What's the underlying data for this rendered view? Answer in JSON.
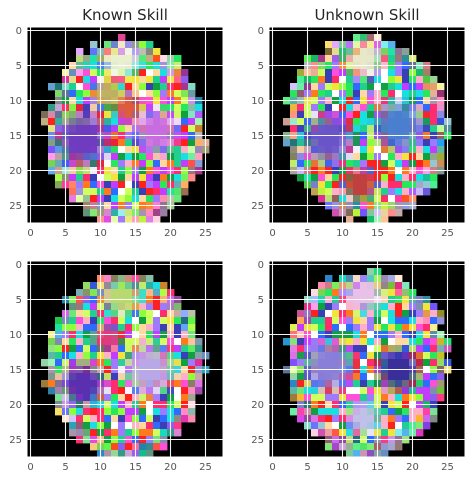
{
  "chart_data": [
    {
      "type": "heatmap",
      "title": "Known Skill",
      "xlabel": "",
      "ylabel": "",
      "xlim": [
        -0.5,
        27.5
      ],
      "ylim": [
        27.5,
        -0.5
      ],
      "xticks": [
        0,
        5,
        10,
        15,
        20,
        25
      ],
      "yticks": [
        0,
        5,
        10,
        15,
        20,
        25
      ],
      "grid": true,
      "background_color": "#000000",
      "blob": {
        "cx": 13.5,
        "cy": 14.5,
        "rx": 11.5,
        "ry": 13.2
      },
      "spots": [
        {
          "cx": 7.5,
          "cy": 15.5,
          "r": 5,
          "color": "#6f3bbf"
        },
        {
          "cx": 18,
          "cy": 14.5,
          "r": 4,
          "color": "#c86de0"
        },
        {
          "cx": 13,
          "cy": 4,
          "r": 3.5,
          "color": "#e8f0d0"
        },
        {
          "cx": 11,
          "cy": 9,
          "r": 2.5,
          "color": "#c0b060"
        },
        {
          "cx": 14,
          "cy": 11,
          "r": 2.5,
          "color": "#e05a3c"
        }
      ],
      "seed": 11
    },
    {
      "type": "heatmap",
      "title": "Unknown Skill",
      "xlabel": "",
      "ylabel": "",
      "xlim": [
        -0.5,
        27.5
      ],
      "ylim": [
        27.5,
        -0.5
      ],
      "xticks": [
        0,
        5,
        10,
        15,
        20,
        25
      ],
      "yticks": [
        0,
        5,
        10,
        15,
        20,
        25
      ],
      "grid": true,
      "background_color": "#000000",
      "blob": {
        "cx": 13.5,
        "cy": 14,
        "rx": 11.8,
        "ry": 13.3
      },
      "spots": [
        {
          "cx": 8,
          "cy": 15.5,
          "r": 4.5,
          "color": "#6a55c8"
        },
        {
          "cx": 18,
          "cy": 13.5,
          "r": 4.5,
          "color": "#4a7fd0"
        },
        {
          "cx": 13,
          "cy": 4,
          "r": 3.5,
          "color": "#e6e8c8"
        },
        {
          "cx": 12.5,
          "cy": 22,
          "r": 3,
          "color": "#c04040"
        }
      ],
      "seed": 23
    },
    {
      "type": "heatmap",
      "title": "",
      "xlabel": "",
      "ylabel": "",
      "xlim": [
        -0.5,
        27.5
      ],
      "ylim": [
        27.5,
        -0.5
      ],
      "xticks": [
        0,
        5,
        10,
        15,
        20,
        25
      ],
      "yticks": [
        0,
        5,
        10,
        15,
        20,
        25
      ],
      "grid": true,
      "background_color": "#000000",
      "blob": {
        "cx": 13.5,
        "cy": 14.5,
        "rx": 11.5,
        "ry": 13.2
      },
      "spots": [
        {
          "cx": 7.5,
          "cy": 17,
          "r": 4,
          "color": "#5a2fb0"
        },
        {
          "cx": 17,
          "cy": 15,
          "r": 4.5,
          "color": "#b9a8e8"
        },
        {
          "cx": 13,
          "cy": 4.5,
          "r": 3.5,
          "color": "#b8d870"
        },
        {
          "cx": 11,
          "cy": 10.5,
          "r": 2.5,
          "color": "#e03a7a"
        }
      ],
      "seed": 37
    },
    {
      "type": "heatmap",
      "title": "",
      "xlabel": "",
      "ylabel": "",
      "xlim": [
        -0.5,
        27.5
      ],
      "ylim": [
        27.5,
        -0.5
      ],
      "xticks": [
        0,
        5,
        10,
        15,
        20,
        25
      ],
      "yticks": [
        0,
        5,
        10,
        15,
        20,
        25
      ],
      "grid": true,
      "background_color": "#000000",
      "blob": {
        "cx": 13.5,
        "cy": 14,
        "rx": 11.8,
        "ry": 13.3
      },
      "spots": [
        {
          "cx": 8,
          "cy": 14.5,
          "r": 4.5,
          "color": "#8a7fd8"
        },
        {
          "cx": 18,
          "cy": 15,
          "r": 4,
          "color": "#3a2f9a"
        },
        {
          "cx": 13,
          "cy": 4,
          "r": 3.5,
          "color": "#e8c0e8"
        },
        {
          "cx": 13,
          "cy": 22,
          "r": 3,
          "color": "#c0c0e8"
        }
      ],
      "seed": 53
    }
  ]
}
